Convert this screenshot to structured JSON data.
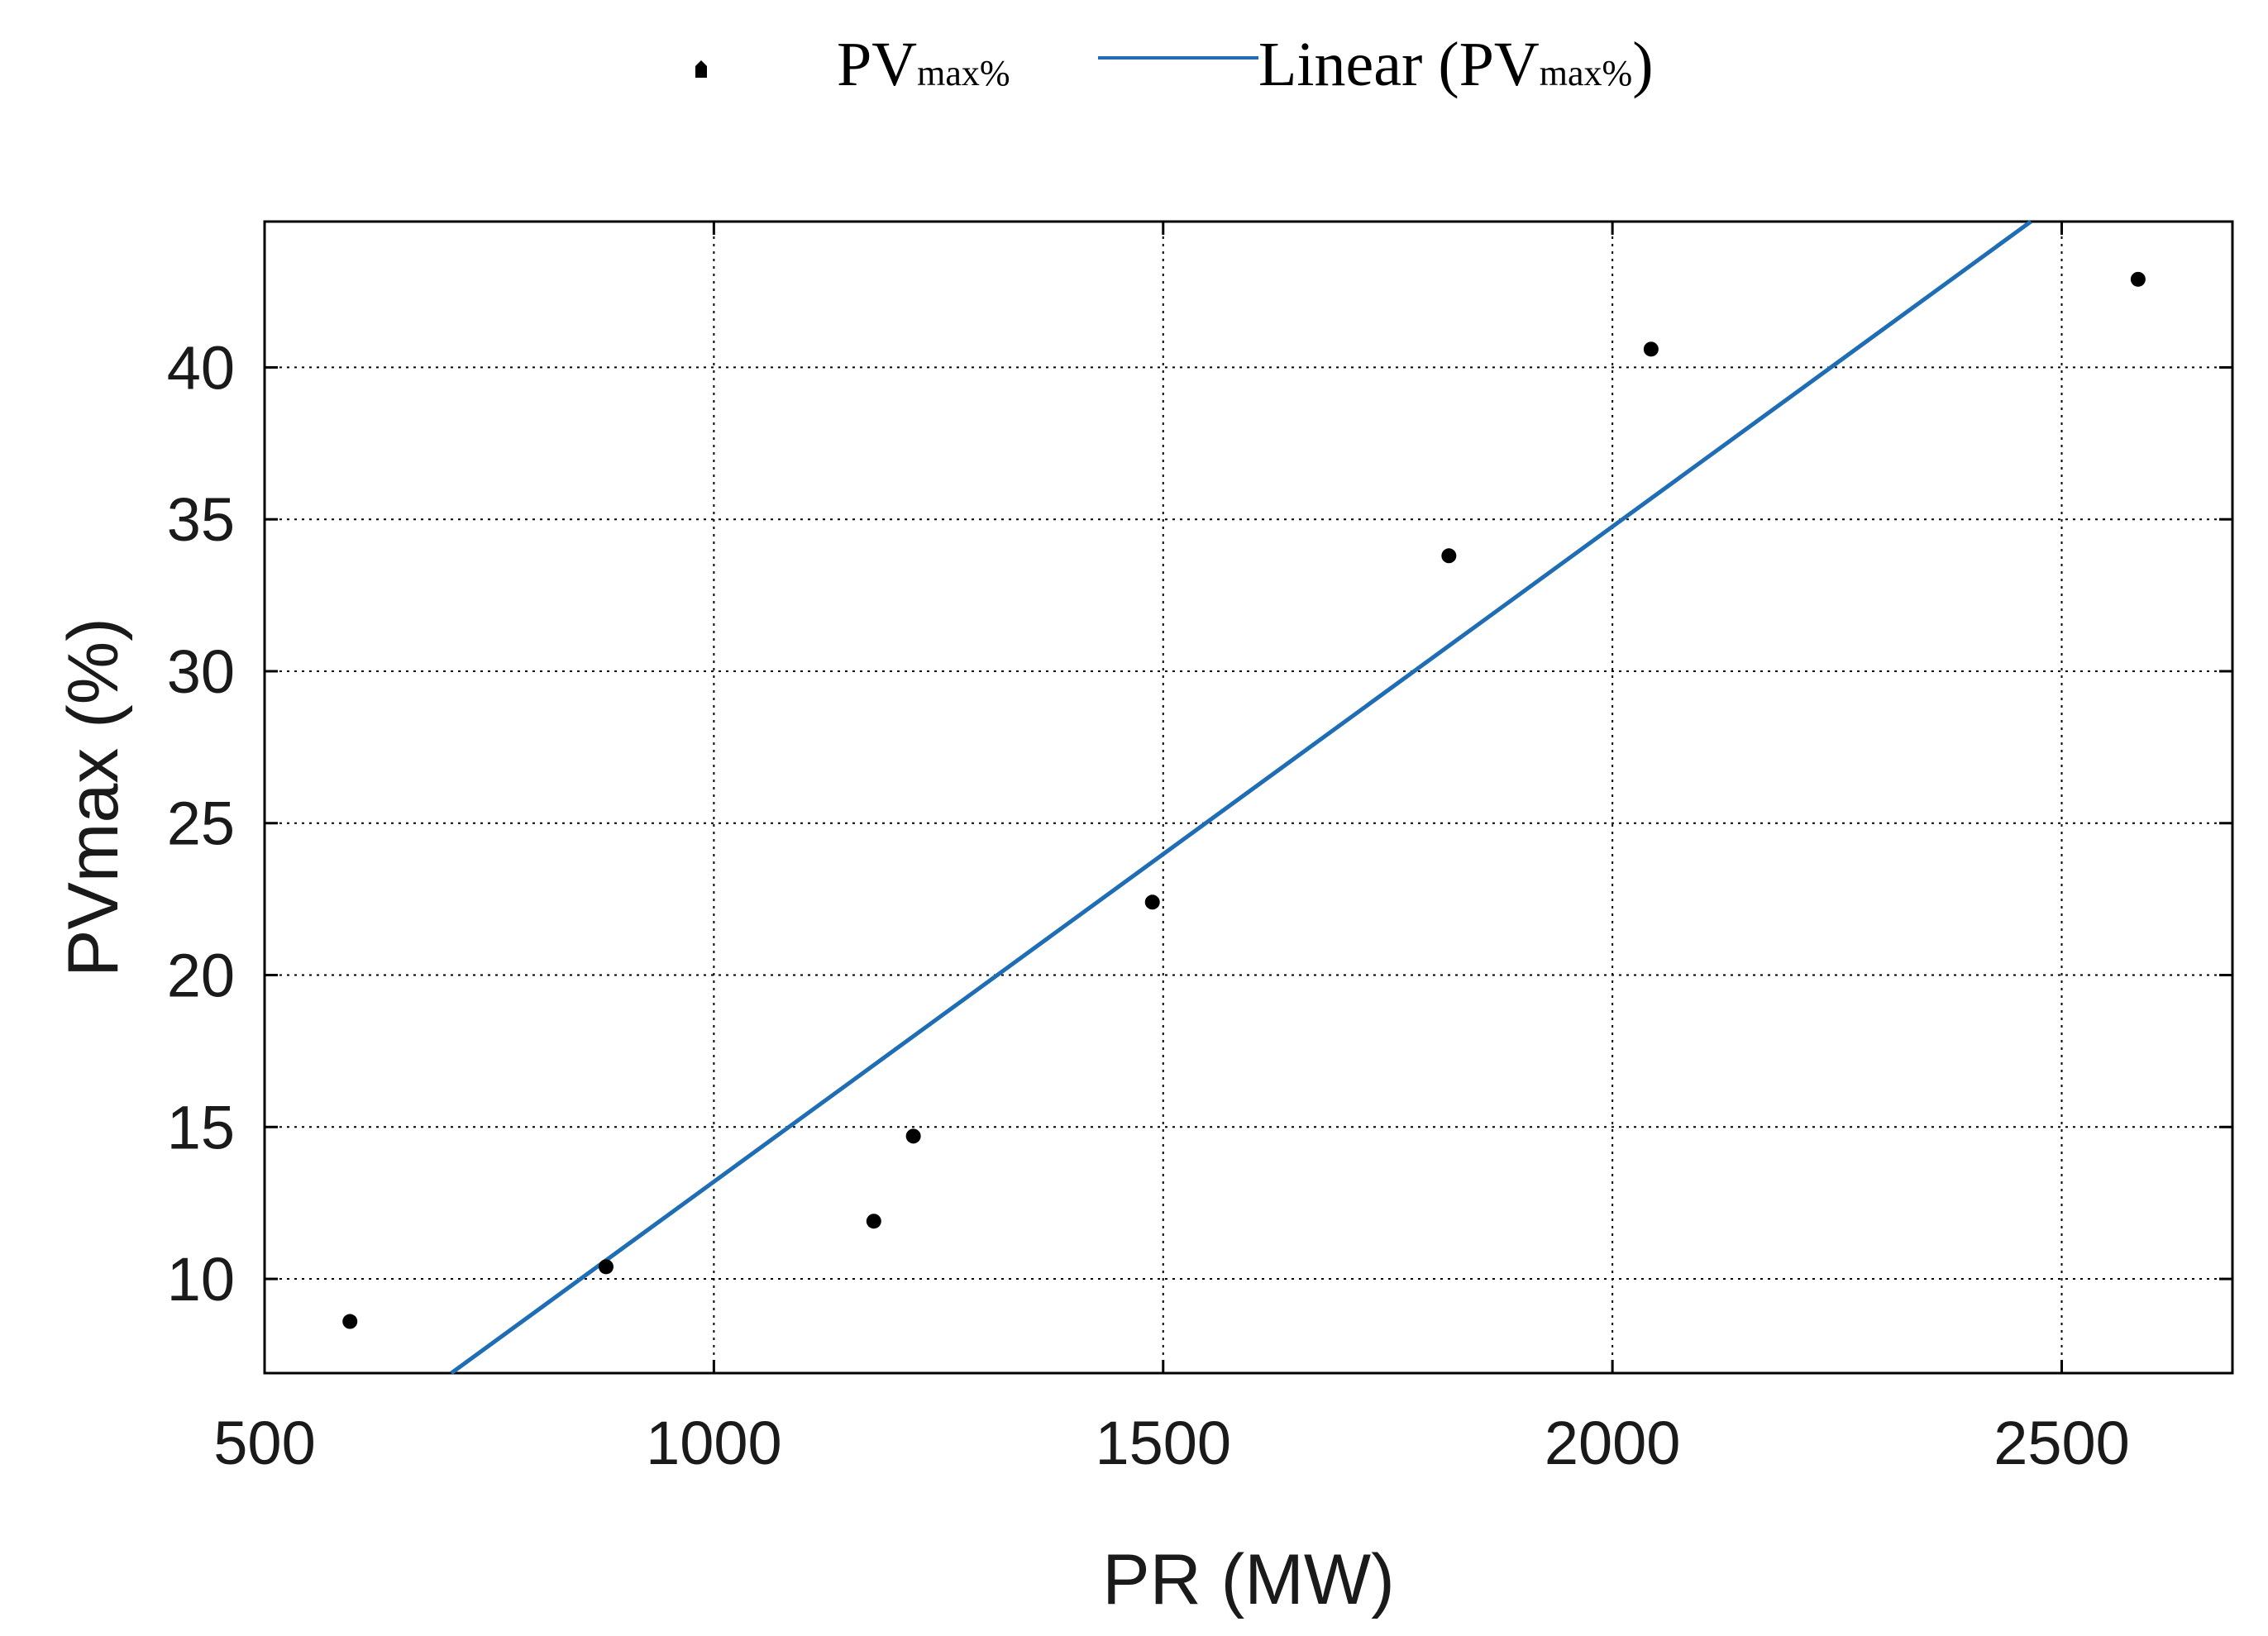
{
  "chart_data": {
    "type": "scatter",
    "title": "",
    "xlabel": "PR (MW)",
    "ylabel": "PVmax (%)",
    "xlim": [
      500,
      2690
    ],
    "ylim": [
      6.9,
      44.8
    ],
    "xticks": [
      500,
      1000,
      1500,
      2000,
      2500
    ],
    "yticks": [
      10,
      15,
      20,
      25,
      30,
      35,
      40
    ],
    "grid": true,
    "legend": {
      "position": "top",
      "entries": [
        {
          "name": "PV",
          "subscript": "max%",
          "kind": "marker"
        },
        {
          "name": "Linear (PV",
          "subscript": "max%",
          "suffix": ")",
          "kind": "line"
        }
      ]
    },
    "series": [
      {
        "name": "PVmax%",
        "kind": "scatter",
        "color": "#000000",
        "points": [
          {
            "x": 595,
            "y": 8.6
          },
          {
            "x": 880,
            "y": 10.4
          },
          {
            "x": 1178,
            "y": 11.9
          },
          {
            "x": 1222,
            "y": 14.7
          },
          {
            "x": 1488,
            "y": 22.4
          },
          {
            "x": 1818,
            "y": 33.8
          },
          {
            "x": 2043,
            "y": 40.6
          },
          {
            "x": 2585,
            "y": 42.9
          }
        ]
      },
      {
        "name": "Linear (PVmax%)",
        "kind": "line",
        "color": "#1f6db5",
        "slope": 0.02156,
        "intercept": -8.36
      }
    ]
  }
}
